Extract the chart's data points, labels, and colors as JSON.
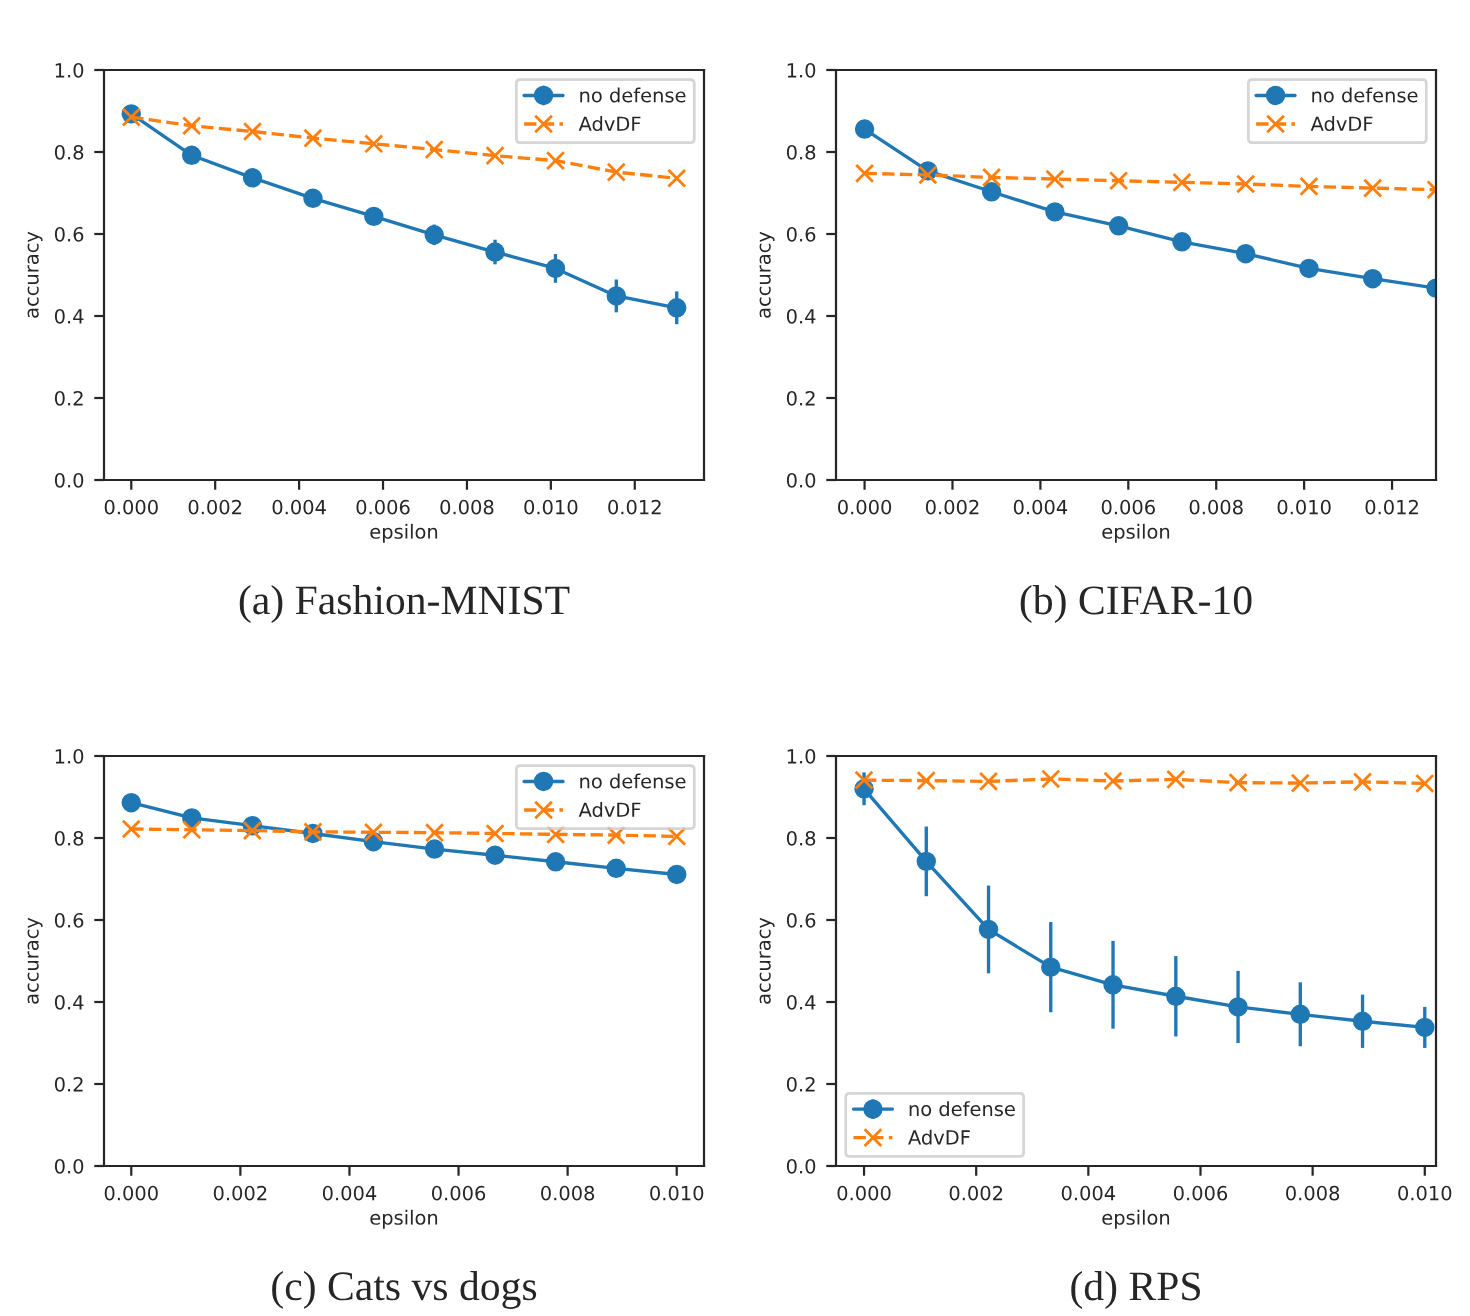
{
  "chart_data": [
    {
      "type": "line",
      "title": "(a) Fashion-MNIST",
      "xlabel": "epsilon",
      "ylabel": "accuracy",
      "x": [
        0,
        0.00144,
        0.00289,
        0.00433,
        0.00578,
        0.00722,
        0.00867,
        0.01011,
        0.01156,
        0.013
      ],
      "xlim": [
        -0.00065,
        0.01365
      ],
      "xticks": [
        {
          "value": 0,
          "label": "0.000"
        },
        {
          "value": 0.002,
          "label": "0.002"
        },
        {
          "value": 0.004,
          "label": "0.004"
        },
        {
          "value": 0.006,
          "label": "0.006"
        },
        {
          "value": 0.008,
          "label": "0.008"
        },
        {
          "value": 0.01,
          "label": "0.010"
        },
        {
          "value": 0.012,
          "label": "0.012"
        }
      ],
      "ylim": [
        0,
        1
      ],
      "yticks": [
        {
          "value": 0,
          "label": "0.0"
        },
        {
          "value": 0.2,
          "label": "0.2"
        },
        {
          "value": 0.4,
          "label": "0.4"
        },
        {
          "value": 0.6,
          "label": "0.6"
        },
        {
          "value": 0.8,
          "label": "0.8"
        },
        {
          "value": 1,
          "label": "1.0"
        }
      ],
      "legend": "top right",
      "grid": false,
      "series": [
        {
          "name": "no defense",
          "color": "#1f77b4",
          "marker": "circle",
          "line_style": "solid",
          "values": [
            0.893,
            0.792,
            0.737,
            0.687,
            0.643,
            0.598,
            0.556,
            0.516,
            0.449,
            0.42
          ],
          "errors": [
            0.005,
            0.01,
            0.01,
            0.015,
            0.02,
            0.025,
            0.03,
            0.035,
            0.04,
            0.04
          ]
        },
        {
          "name": "AdvDF",
          "color": "#ff7f0e",
          "marker": "cross",
          "line_style": "dashed",
          "values": [
            0.885,
            0.864,
            0.85,
            0.834,
            0.82,
            0.806,
            0.791,
            0.779,
            0.751,
            0.736
          ]
        }
      ]
    },
    {
      "type": "line",
      "title": "(b) CIFAR-10",
      "xlabel": "epsilon",
      "ylabel": "accuracy",
      "x": [
        0,
        0.00144,
        0.00289,
        0.00433,
        0.00578,
        0.00722,
        0.00867,
        0.01011,
        0.01156,
        0.013
      ],
      "xlim": [
        -0.00065,
        0.013
      ],
      "xticks": [
        {
          "value": 0,
          "label": "0.000"
        },
        {
          "value": 0.002,
          "label": "0.002"
        },
        {
          "value": 0.004,
          "label": "0.004"
        },
        {
          "value": 0.006,
          "label": "0.006"
        },
        {
          "value": 0.008,
          "label": "0.008"
        },
        {
          "value": 0.01,
          "label": "0.010"
        },
        {
          "value": 0.012,
          "label": "0.012"
        }
      ],
      "ylim": [
        0,
        1
      ],
      "yticks": [
        {
          "value": 0,
          "label": "0.0"
        },
        {
          "value": 0.2,
          "label": "0.2"
        },
        {
          "value": 0.4,
          "label": "0.4"
        },
        {
          "value": 0.6,
          "label": "0.6"
        },
        {
          "value": 0.8,
          "label": "0.8"
        },
        {
          "value": 1,
          "label": "1.0"
        }
      ],
      "legend": "top right",
      "grid": false,
      "series": [
        {
          "name": "no defense",
          "color": "#1f77b4",
          "marker": "circle",
          "line_style": "solid",
          "values": [
            0.856,
            0.754,
            0.703,
            0.654,
            0.62,
            0.581,
            0.552,
            0.516,
            0.491,
            0.468
          ]
        },
        {
          "name": "AdvDF",
          "color": "#ff7f0e",
          "marker": "cross",
          "line_style": "dashed",
          "values": [
            0.748,
            0.744,
            0.738,
            0.734,
            0.73,
            0.726,
            0.722,
            0.716,
            0.712,
            0.708
          ]
        }
      ]
    },
    {
      "type": "line",
      "title": "(c) Cats vs dogs",
      "xlabel": "epsilon",
      "ylabel": "accuracy",
      "x": [
        0,
        0.00111,
        0.00222,
        0.00333,
        0.00444,
        0.00556,
        0.00667,
        0.00778,
        0.00889,
        0.01
      ],
      "xlim": [
        -0.0005,
        0.0105
      ],
      "xticks": [
        {
          "value": 0,
          "label": "0.000"
        },
        {
          "value": 0.002,
          "label": "0.002"
        },
        {
          "value": 0.004,
          "label": "0.004"
        },
        {
          "value": 0.006,
          "label": "0.006"
        },
        {
          "value": 0.008,
          "label": "0.008"
        },
        {
          "value": 0.01,
          "label": "0.010"
        }
      ],
      "ylim": [
        0,
        1
      ],
      "yticks": [
        {
          "value": 0,
          "label": "0.0"
        },
        {
          "value": 0.2,
          "label": "0.2"
        },
        {
          "value": 0.4,
          "label": "0.4"
        },
        {
          "value": 0.6,
          "label": "0.6"
        },
        {
          "value": 0.8,
          "label": "0.8"
        },
        {
          "value": 1,
          "label": "1.0"
        }
      ],
      "legend": "top right",
      "grid": false,
      "series": [
        {
          "name": "no defense",
          "color": "#1f77b4",
          "marker": "circle",
          "line_style": "solid",
          "values": [
            0.886,
            0.849,
            0.83,
            0.811,
            0.791,
            0.773,
            0.758,
            0.742,
            0.726,
            0.711
          ]
        },
        {
          "name": "AdvDF",
          "color": "#ff7f0e",
          "marker": "cross",
          "line_style": "dashed",
          "values": [
            0.822,
            0.82,
            0.818,
            0.815,
            0.814,
            0.813,
            0.811,
            0.809,
            0.807,
            0.804
          ]
        }
      ]
    },
    {
      "type": "line",
      "title": "(d) RPS",
      "xlabel": "epsilon",
      "ylabel": "accuracy",
      "x": [
        0,
        0.00111,
        0.00222,
        0.00333,
        0.00444,
        0.00556,
        0.00667,
        0.00778,
        0.00889,
        0.01
      ],
      "xlim": [
        -0.0005,
        0.0102
      ],
      "xticks": [
        {
          "value": 0,
          "label": "0.000"
        },
        {
          "value": 0.002,
          "label": "0.002"
        },
        {
          "value": 0.004,
          "label": "0.004"
        },
        {
          "value": 0.006,
          "label": "0.006"
        },
        {
          "value": 0.008,
          "label": "0.008"
        },
        {
          "value": 0.01,
          "label": "0.010"
        }
      ],
      "ylim": [
        0,
        1
      ],
      "yticks": [
        {
          "value": 0,
          "label": "0.0"
        },
        {
          "value": 0.2,
          "label": "0.2"
        },
        {
          "value": 0.4,
          "label": "0.4"
        },
        {
          "value": 0.6,
          "label": "0.6"
        },
        {
          "value": 0.8,
          "label": "0.8"
        },
        {
          "value": 1,
          "label": "1.0"
        }
      ],
      "legend": "bottom left",
      "grid": false,
      "series": [
        {
          "name": "no defense",
          "color": "#1f77b4",
          "marker": "circle",
          "line_style": "solid",
          "values": [
            0.92,
            0.743,
            0.577,
            0.485,
            0.442,
            0.414,
            0.388,
            0.37,
            0.353,
            0.338
          ],
          "errors": [
            0.04,
            0.085,
            0.107,
            0.11,
            0.107,
            0.098,
            0.088,
            0.078,
            0.065,
            0.05
          ]
        },
        {
          "name": "AdvDF",
          "color": "#ff7f0e",
          "marker": "cross",
          "line_style": "dashed",
          "values": [
            0.941,
            0.94,
            0.938,
            0.944,
            0.939,
            0.943,
            0.935,
            0.934,
            0.937,
            0.933
          ]
        }
      ]
    }
  ]
}
